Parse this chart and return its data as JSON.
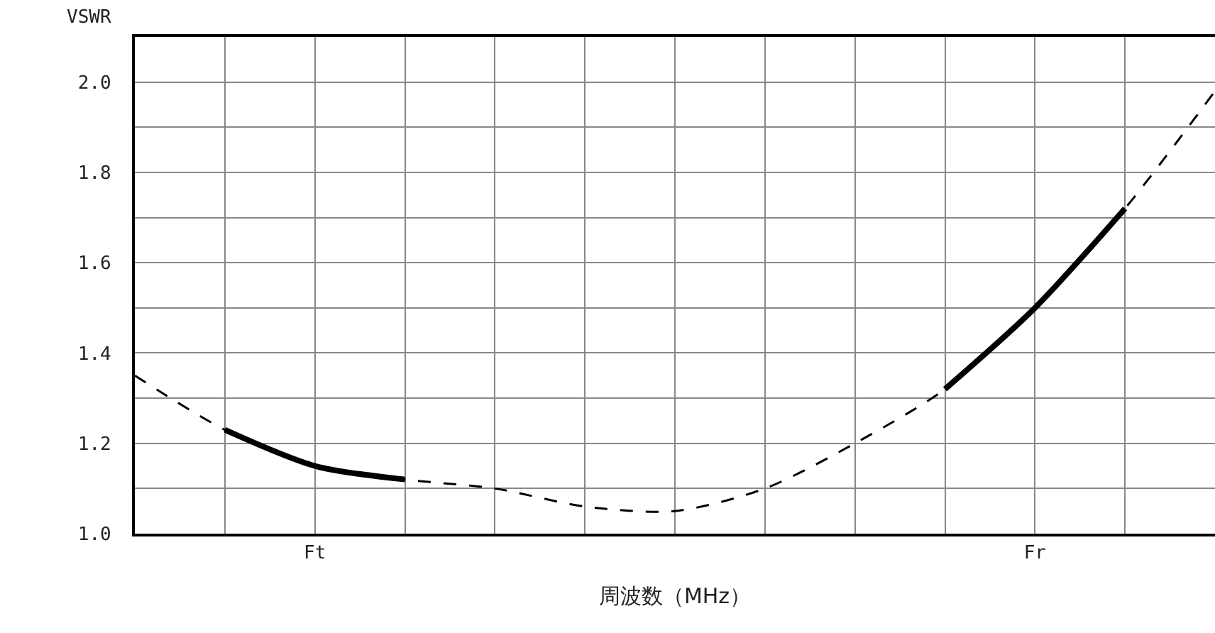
{
  "chart_data": {
    "type": "line",
    "xlabel": "周波数（MHz）",
    "ylabel": "VSWR",
    "categories": [
      null,
      null,
      "Ft",
      null,
      null,
      null,
      null,
      null,
      null,
      null,
      "Fr",
      null,
      null
    ],
    "ylim": [
      1.0,
      2.1
    ],
    "yticks": [
      {
        "value": 1.0,
        "label": "1.0"
      },
      {
        "value": 1.1,
        "label": null
      },
      {
        "value": 1.2,
        "label": "1.2"
      },
      {
        "value": 1.3,
        "label": null
      },
      {
        "value": 1.4,
        "label": "1.4"
      },
      {
        "value": 1.5,
        "label": null
      },
      {
        "value": 1.6,
        "label": "1.6"
      },
      {
        "value": 1.7,
        "label": null
      },
      {
        "value": 1.8,
        "label": "1.8"
      },
      {
        "value": 1.9,
        "label": null
      },
      {
        "value": 2.0,
        "label": "2.0"
      }
    ],
    "grid": true,
    "marker": "none",
    "series": [
      {
        "color": "#000000",
        "line_style": "dashed",
        "values": [
          1.35,
          1.23,
          1.15,
          1.12,
          1.1,
          1.06,
          1.05,
          1.1,
          1.2,
          1.32,
          1.5,
          1.72,
          1.98
        ]
      },
      {
        "color": "#000000",
        "line_style": "solid",
        "values": [
          null,
          1.23,
          1.15,
          1.12,
          null,
          null,
          null,
          null,
          null,
          null,
          null,
          null,
          null
        ]
      },
      {
        "color": "#000000",
        "line_style": "solid",
        "values": [
          null,
          null,
          null,
          null,
          null,
          null,
          null,
          null,
          null,
          1.32,
          1.5,
          1.72,
          null
        ]
      }
    ]
  }
}
